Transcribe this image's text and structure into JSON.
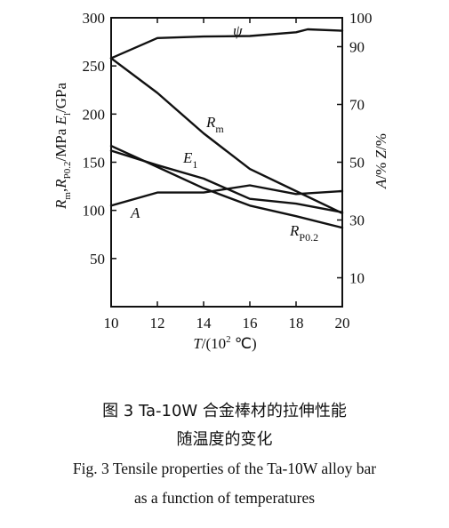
{
  "chart_data": {
    "type": "line",
    "x": [
      10,
      12,
      14,
      16,
      18,
      20
    ],
    "xlabel": "T/(10² ℃)",
    "xlim": [
      10,
      20
    ],
    "x_ticks": [
      "10",
      "12",
      "14",
      "16",
      "18",
      "20"
    ],
    "left_axis": {
      "label": "Rm,RP0.2/MPa  El/GPa",
      "lim": [
        0,
        300
      ],
      "ticks": [
        50,
        100,
        150,
        200,
        250,
        300
      ]
    },
    "right_axis": {
      "label": "A/%  Z/%",
      "lim": [
        0,
        100
      ],
      "ticks": [
        10,
        30,
        50,
        70,
        90,
        100
      ]
    },
    "series": [
      {
        "name": "ψ",
        "axis": "right",
        "x": [
          10,
          12,
          14,
          16,
          18,
          18.5,
          20
        ],
        "values": [
          86,
          93,
          93.5,
          93.7,
          95,
          96,
          95.5
        ]
      },
      {
        "name": "Rm",
        "axis": "left",
        "x": [
          10,
          12,
          14,
          16,
          18,
          20
        ],
        "values": [
          258,
          222,
          180,
          143,
          120,
          97
        ]
      },
      {
        "name": "E1",
        "axis": "left",
        "x": [
          10,
          12,
          14,
          16,
          18,
          20
        ],
        "values": [
          162,
          147,
          133,
          112,
          107,
          98
        ]
      },
      {
        "name": "RP0.2",
        "axis": "left",
        "x": [
          10,
          12,
          14,
          16,
          18,
          20
        ],
        "values": [
          167,
          145,
          123,
          105,
          94,
          82
        ]
      },
      {
        "name": "A",
        "axis": "right",
        "x": [
          10,
          12,
          14,
          16,
          18,
          20
        ],
        "values": [
          35,
          39.5,
          39.5,
          42,
          39,
          40
        ]
      }
    ]
  },
  "caption": {
    "cn_line1": "图 3   Ta-10W 合金棒材的拉伸性能",
    "cn_line2": "随温度的变化",
    "en_line1": "Fig. 3   Tensile properties of the Ta-10W alloy bar",
    "en_line2": "as a function of temperatures"
  }
}
